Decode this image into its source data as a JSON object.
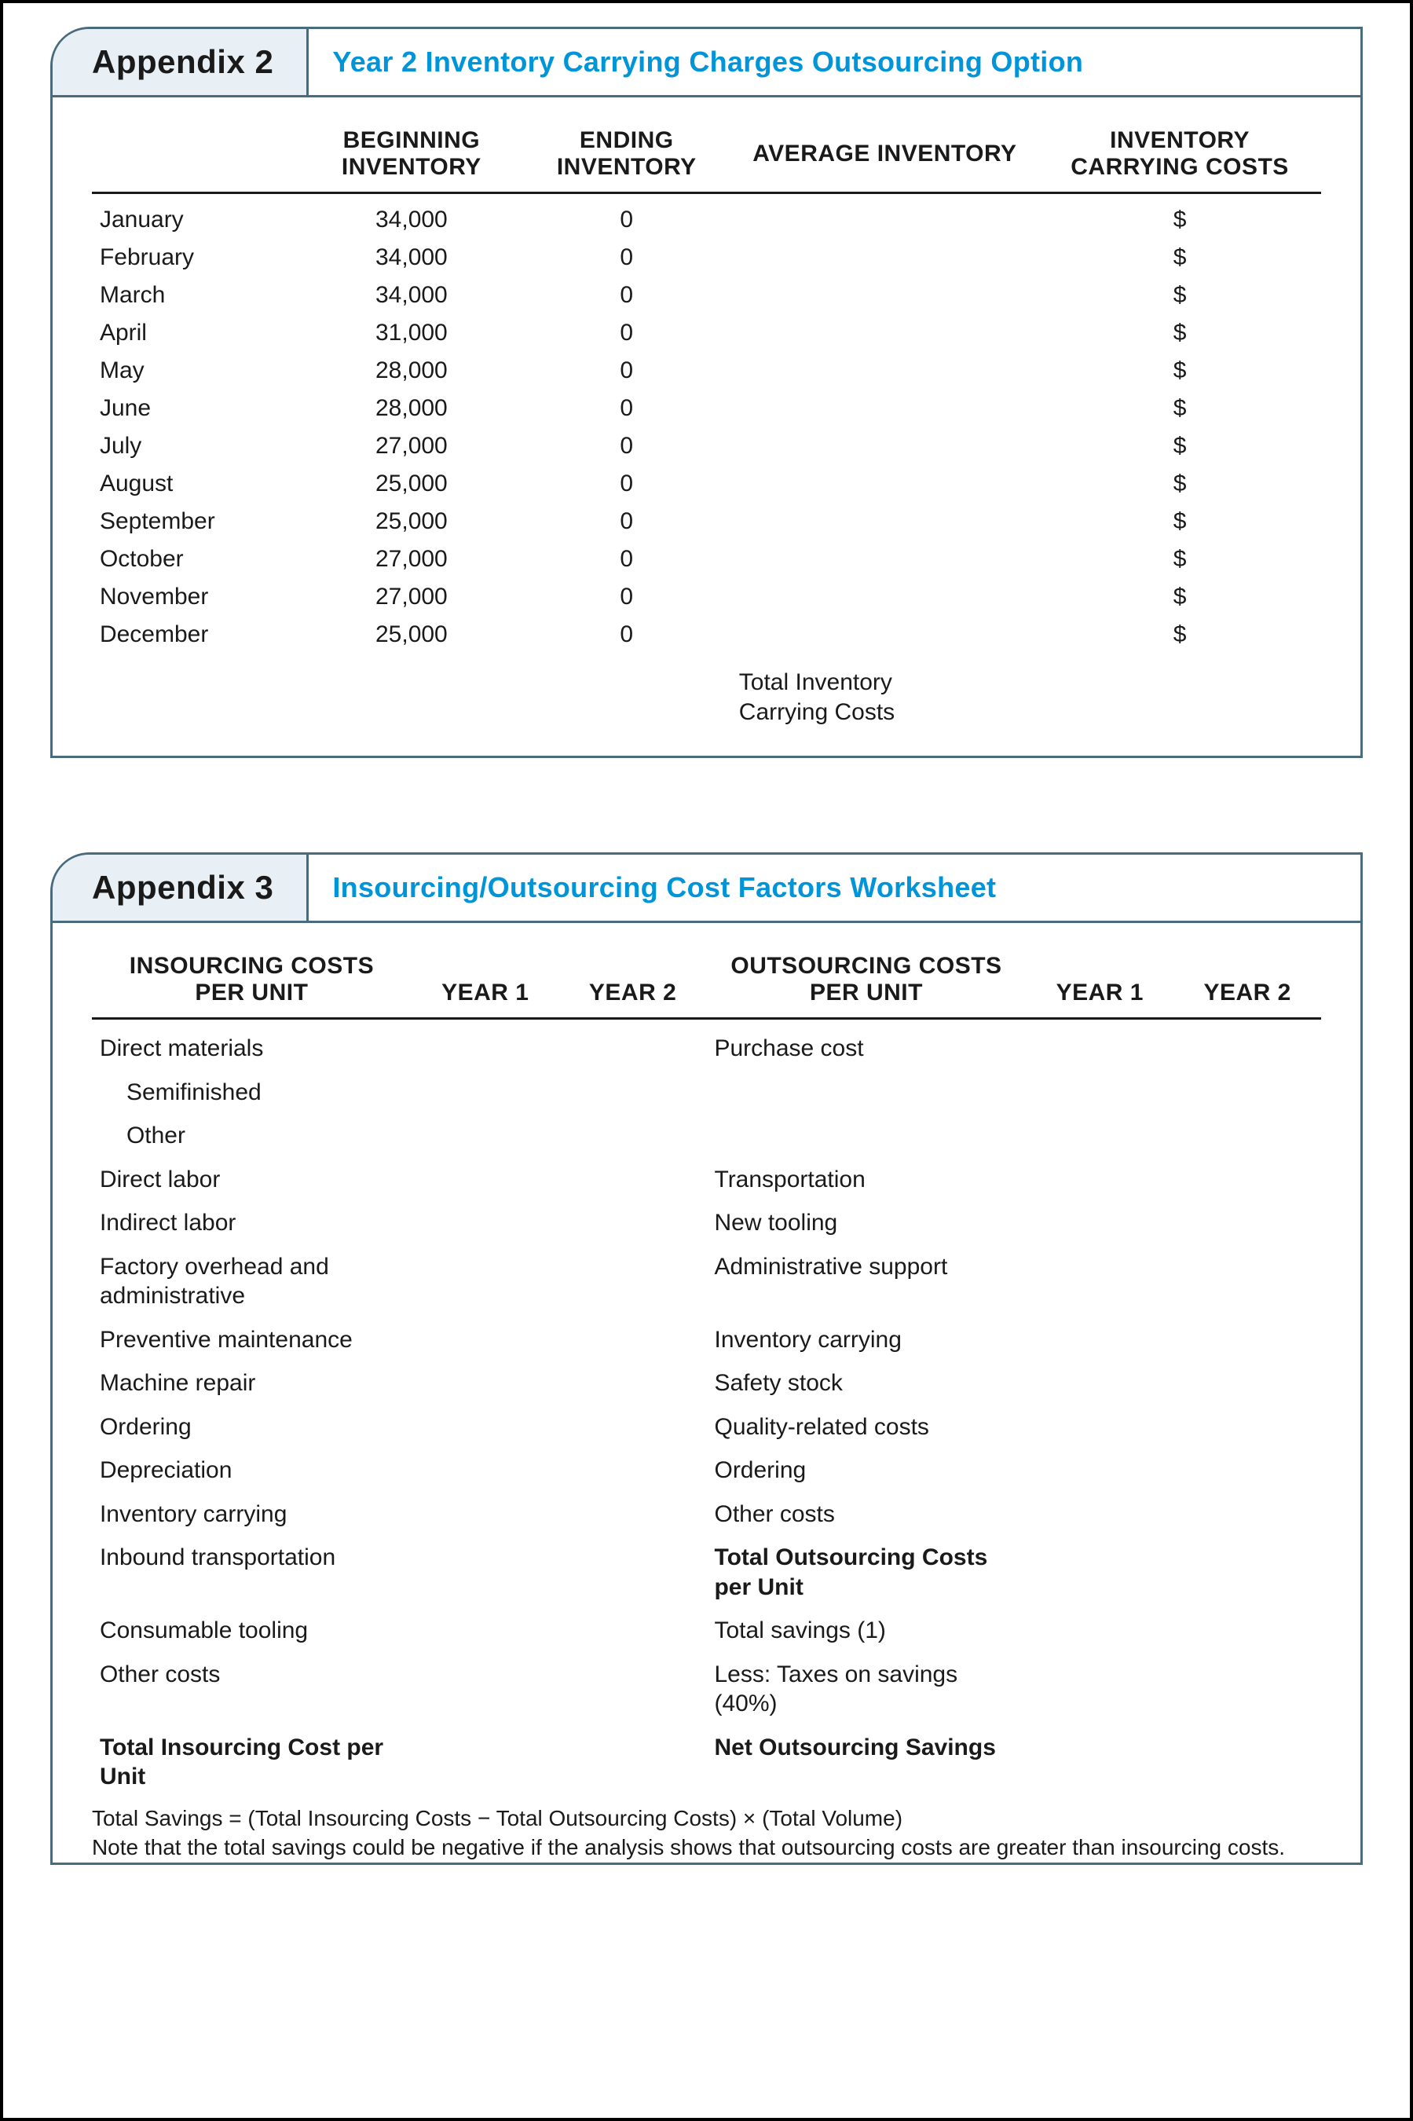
{
  "colors": {
    "page_border": "#000000",
    "box_border": "#4a6b7c",
    "tab_bg": "#e8f0f5",
    "title_color": "#0095d9",
    "text_color": "#1a1a1a",
    "rule_color": "#1a1a1a"
  },
  "appendix2": {
    "tab": "Appendix 2",
    "title": "Year 2 Inventory Carrying Charges Outsourcing Option",
    "headers": {
      "c1": "",
      "c2_l1": "BEGINNING",
      "c2_l2": "INVENTORY",
      "c3_l1": "ENDING",
      "c3_l2": "INVENTORY",
      "c4": "AVERAGE INVENTORY",
      "c5_l1": "INVENTORY",
      "c5_l2": "CARRYING COSTS"
    },
    "rows": [
      {
        "month": "January",
        "begin": "34,000",
        "end": "0",
        "avg": "",
        "cost": "$"
      },
      {
        "month": "February",
        "begin": "34,000",
        "end": "0",
        "avg": "",
        "cost": "$"
      },
      {
        "month": "March",
        "begin": "34,000",
        "end": "0",
        "avg": "",
        "cost": "$"
      },
      {
        "month": "April",
        "begin": "31,000",
        "end": "0",
        "avg": "",
        "cost": "$"
      },
      {
        "month": "May",
        "begin": "28,000",
        "end": "0",
        "avg": "",
        "cost": "$"
      },
      {
        "month": "June",
        "begin": "28,000",
        "end": "0",
        "avg": "",
        "cost": "$"
      },
      {
        "month": "July",
        "begin": "27,000",
        "end": "0",
        "avg": "",
        "cost": "$"
      },
      {
        "month": "August",
        "begin": "25,000",
        "end": "0",
        "avg": "",
        "cost": "$"
      },
      {
        "month": "September",
        "begin": "25,000",
        "end": "0",
        "avg": "",
        "cost": "$"
      },
      {
        "month": "October",
        "begin": "27,000",
        "end": "0",
        "avg": "",
        "cost": "$"
      },
      {
        "month": "November",
        "begin": "27,000",
        "end": "0",
        "avg": "",
        "cost": "$"
      },
      {
        "month": "December",
        "begin": "25,000",
        "end": "0",
        "avg": "",
        "cost": "$"
      }
    ],
    "total_l1": "Total Inventory",
    "total_l2": "Carrying Costs"
  },
  "appendix3": {
    "tab": "Appendix 3",
    "title": "Insourcing/Outsourcing Cost Factors Worksheet",
    "headers": {
      "ins_l1": "INSOURCING COSTS",
      "ins_l2": "PER UNIT",
      "y1": "YEAR 1",
      "y2": "YEAR 2",
      "out_l1": "OUTSOURCING COSTS",
      "out_l2": "PER UNIT"
    },
    "rows": [
      {
        "ins": "Direct materials",
        "out": "Purchase cost"
      },
      {
        "ins": "Semifinished",
        "indent": true,
        "out": ""
      },
      {
        "ins": "Other",
        "indent": true,
        "out": ""
      },
      {
        "ins": "Direct labor",
        "out": "Transportation"
      },
      {
        "ins": "Indirect labor",
        "out": "New tooling"
      },
      {
        "ins": "Factory overhead and administrative",
        "out": "Administrative support"
      },
      {
        "ins": "Preventive maintenance",
        "out": "Inventory carrying"
      },
      {
        "ins": "Machine repair",
        "out": "Safety stock"
      },
      {
        "ins": "Ordering",
        "out": "Quality-related costs"
      },
      {
        "ins": "Depreciation",
        "out": "Ordering"
      },
      {
        "ins": "Inventory carrying",
        "out": "Other costs"
      },
      {
        "ins": "Inbound transportation",
        "out": "Total Outsourcing Costs per Unit",
        "out_bold": true
      },
      {
        "ins": "Consumable tooling",
        "out": "Total savings (1)"
      },
      {
        "ins": "Other costs",
        "out": "Less: Taxes on savings (40%)"
      },
      {
        "ins": "Total Insourcing Cost per Unit",
        "ins_bold": true,
        "out": "Net Outsourcing Savings",
        "out_bold": true
      }
    ],
    "foot_l1": "Total Savings = (Total Insourcing Costs − Total Outsourcing Costs) × (Total Volume)",
    "foot_l2": "Note that the total savings could be negative if the analysis shows that outsourcing costs are greater than insourcing costs."
  }
}
